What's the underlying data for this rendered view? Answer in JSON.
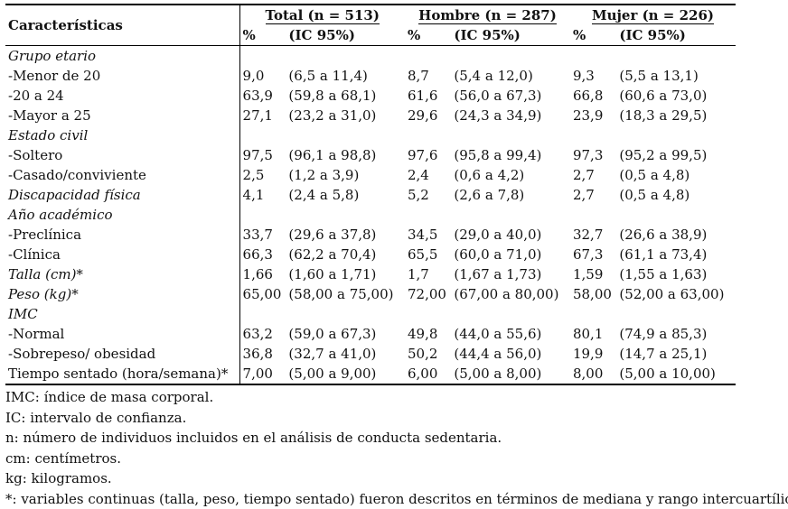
{
  "header": {
    "characteristics": "Características",
    "groups": [
      {
        "label": "Total (n = 513)"
      },
      {
        "label": "Hombre (n = 287)"
      },
      {
        "label": "Mujer (n = 226)"
      }
    ],
    "pct": "%",
    "ic": "(IC 95%)"
  },
  "rows": [
    {
      "label": "Grupo etario",
      "italic": true,
      "values": []
    },
    {
      "label": "-Menor de 20",
      "values": [
        "9,0",
        "(6,5 a 11,4)",
        "8,7",
        "(5,4 a 12,0)",
        "9,3",
        "(5,5 a 13,1)"
      ]
    },
    {
      "label": "-20 a 24",
      "values": [
        "63,9",
        "(59,8 a 68,1)",
        "61,6",
        "(56,0 a 67,3)",
        "66,8",
        "(60,6 a 73,0)"
      ]
    },
    {
      "label": "-Mayor a 25",
      "values": [
        "27,1",
        "(23,2 a 31,0)",
        "29,6",
        "(24,3 a 34,9)",
        "23,9",
        "(18,3 a 29,5)"
      ]
    },
    {
      "label": "Estado civil",
      "italic": true,
      "values": []
    },
    {
      "label": "-Soltero",
      "values": [
        "97,5",
        "(96,1 a 98,8)",
        "97,6",
        "(95,8 a 99,4)",
        "97,3",
        "(95,2 a 99,5)"
      ]
    },
    {
      "label": "-Casado/conviviente",
      "values": [
        "2,5",
        "(1,2 a 3,9)",
        "2,4",
        "(0,6 a 4,2)",
        "2,7",
        "(0,5 a 4,8)"
      ]
    },
    {
      "label": "Discapacidad física",
      "italic": true,
      "values": [
        "4,1",
        "(2,4 a 5,8)",
        "5,2",
        "(2,6 a 7,8)",
        "2,7",
        "(0,5 a 4,8)"
      ]
    },
    {
      "label": "Año académico",
      "italic": true,
      "values": []
    },
    {
      "label": "-Preclínica",
      "values": [
        "33,7",
        "(29,6 a 37,8)",
        "34,5",
        "(29,0 a 40,0)",
        "32,7",
        "(26,6 a 38,9)"
      ]
    },
    {
      "label": "-Clínica",
      "values": [
        "66,3",
        "(62,2 a 70,4)",
        "65,5",
        "(60,0 a 71,0)",
        "67,3",
        "(61,1 a 73,4)"
      ]
    },
    {
      "label": "Talla (cm)*",
      "italic": true,
      "values": [
        "1,66",
        "(1,60 a 1,71)",
        "1,7",
        "(1,67 a 1,73)",
        "1,59",
        "(1,55 a 1,63)"
      ]
    },
    {
      "label": "Peso (kg)*",
      "italic": true,
      "values": [
        "65,00",
        "(58,00 a 75,00)",
        "72,00",
        "(67,00 a 80,00)",
        "58,00",
        "(52,00 a 63,00)"
      ]
    },
    {
      "label": "IMC",
      "italic": true,
      "values": []
    },
    {
      "label": "-Normal",
      "values": [
        "63,2",
        "(59,0 a 67,3)",
        "49,8",
        "(44,0 a 55,6)",
        "80,1",
        "(74,9 a 85,3)"
      ]
    },
    {
      "label": "-Sobrepeso/ obesidad",
      "values": [
        "36,8",
        "(32,7 a 41,0)",
        "50,2",
        "(44,4 a 56,0)",
        "19,9",
        "(14,7 a 25,1)"
      ]
    },
    {
      "label": "Tiempo sentado (hora/semana)*",
      "values": [
        "7,00",
        "(5,00 a 9,00)",
        "6,00",
        "(5,00 a 8,00)",
        "8,00",
        "(5,00 a 10,00)"
      ]
    }
  ],
  "notes": [
    "IMC: índice de masa corporal.",
    "IC: intervalo de confianza.",
    "n: número de individuos incluidos en el análisis de conducta sedentaria.",
    "cm: centímetros.",
    "kg: kilogramos.",
    "*: variables continuas (talla, peso, tiempo sentado) fueron descritos en términos de mediana y rango intercuartílico."
  ]
}
